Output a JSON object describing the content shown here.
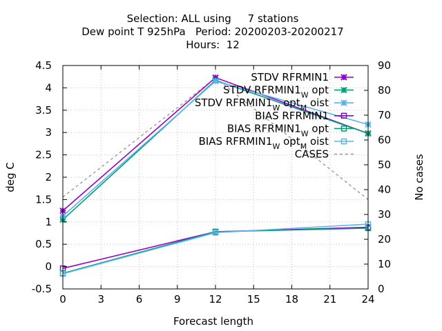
{
  "title": {
    "line1": "Selection: ALL using     7 stations",
    "line2": "Dew point T 925hPa   Period: 20200203-20200217",
    "line3": "Hours:  12"
  },
  "chart_data": {
    "type": "line",
    "xlabel": "Forecast length",
    "ylabel": "deg C",
    "y2label": "No cases",
    "xlim": [
      0,
      24
    ],
    "ylim": [
      -0.5,
      4.5
    ],
    "y2lim": [
      0,
      90
    ],
    "x_ticks": [
      "0",
      "3",
      "6",
      "9",
      "12",
      "15",
      "18",
      "21",
      "24"
    ],
    "y_ticks": [
      "-0.5",
      "0",
      "0.5",
      "1",
      "1.5",
      "2",
      "2.5",
      "3",
      "3.5",
      "4",
      "4.5"
    ],
    "y2_ticks": [
      "0",
      "10",
      "20",
      "30",
      "40",
      "50",
      "60",
      "70",
      "80",
      "90"
    ],
    "grid": true,
    "legend_position": "top-right",
    "series": [
      {
        "name": "STDV RFRMIN1",
        "axis": "y1",
        "color": "#9400d3",
        "marker": "x-star",
        "dashed": false,
        "x": [
          0,
          12,
          24
        ],
        "y": [
          1.25,
          4.23,
          2.98
        ]
      },
      {
        "name": "STDV RFRMIN1_W opt",
        "axis": "y1",
        "color": "#009e73",
        "marker": "x-star",
        "dashed": false,
        "x": [
          0,
          12,
          24
        ],
        "y": [
          1.05,
          4.17,
          2.98
        ]
      },
      {
        "name": "STDV RFRMIN1_W opt_M oist",
        "axis": "y1",
        "color": "#56b4e9",
        "marker": "x-star",
        "dashed": false,
        "x": [
          0,
          12,
          24
        ],
        "y": [
          1.13,
          4.15,
          3.18
        ]
      },
      {
        "name": "BIAS RFRMIN1",
        "axis": "y1",
        "color": "#9400d3",
        "marker": "square",
        "dashed": false,
        "x": [
          0,
          12,
          24
        ],
        "y": [
          -0.04,
          0.78,
          0.88
        ]
      },
      {
        "name": "BIAS RFRMIN1_W opt",
        "axis": "y1",
        "color": "#009e73",
        "marker": "square",
        "dashed": false,
        "x": [
          0,
          12,
          24
        ],
        "y": [
          -0.15,
          0.78,
          0.86
        ]
      },
      {
        "name": "BIAS RFRMIN1_W opt_M oist",
        "axis": "y1",
        "color": "#56b4e9",
        "marker": "square",
        "dashed": false,
        "x": [
          0,
          12,
          24
        ],
        "y": [
          -0.16,
          0.76,
          0.95
        ]
      },
      {
        "name": "CASES",
        "axis": "y2",
        "color": "#a0a0a0",
        "marker": "none",
        "dashed": true,
        "x": [
          0,
          12,
          24
        ],
        "y": [
          37,
          85,
          36
        ]
      }
    ]
  }
}
